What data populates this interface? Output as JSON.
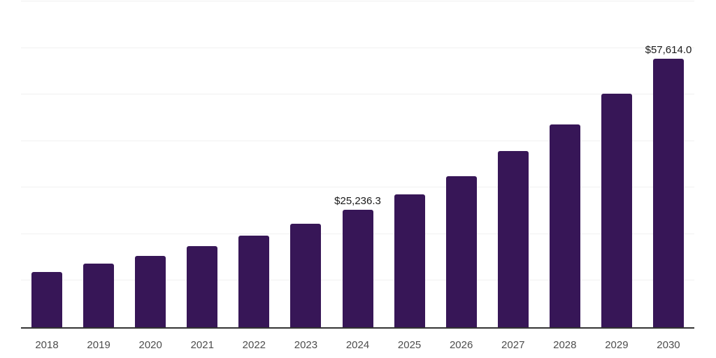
{
  "chart_data": {
    "type": "bar",
    "title": "",
    "xlabel": "",
    "ylabel": "",
    "categories": [
      "2018",
      "2019",
      "2020",
      "2021",
      "2022",
      "2023",
      "2024",
      "2025",
      "2026",
      "2027",
      "2028",
      "2029",
      "2030"
    ],
    "values": [
      11900,
      13600,
      15250,
      17500,
      19750,
      22300,
      25236.3,
      28600,
      32500,
      37900,
      43600,
      50200,
      57614.0
    ],
    "data_labels": {
      "2024": "$25,236.3",
      "2030": "$57,614.0"
    },
    "ylim": [
      0,
      70000
    ],
    "gridline_step": 10000,
    "grid": "horizontal-only",
    "y_tick_labels": "none",
    "legend": "none"
  },
  "colors": {
    "bar": "#371657",
    "axis_line": "#333333",
    "gridline": "#f0f0f0",
    "x_tick_label": "#4d4d4d",
    "data_label": "#1a1a1a",
    "background": "#ffffff"
  }
}
